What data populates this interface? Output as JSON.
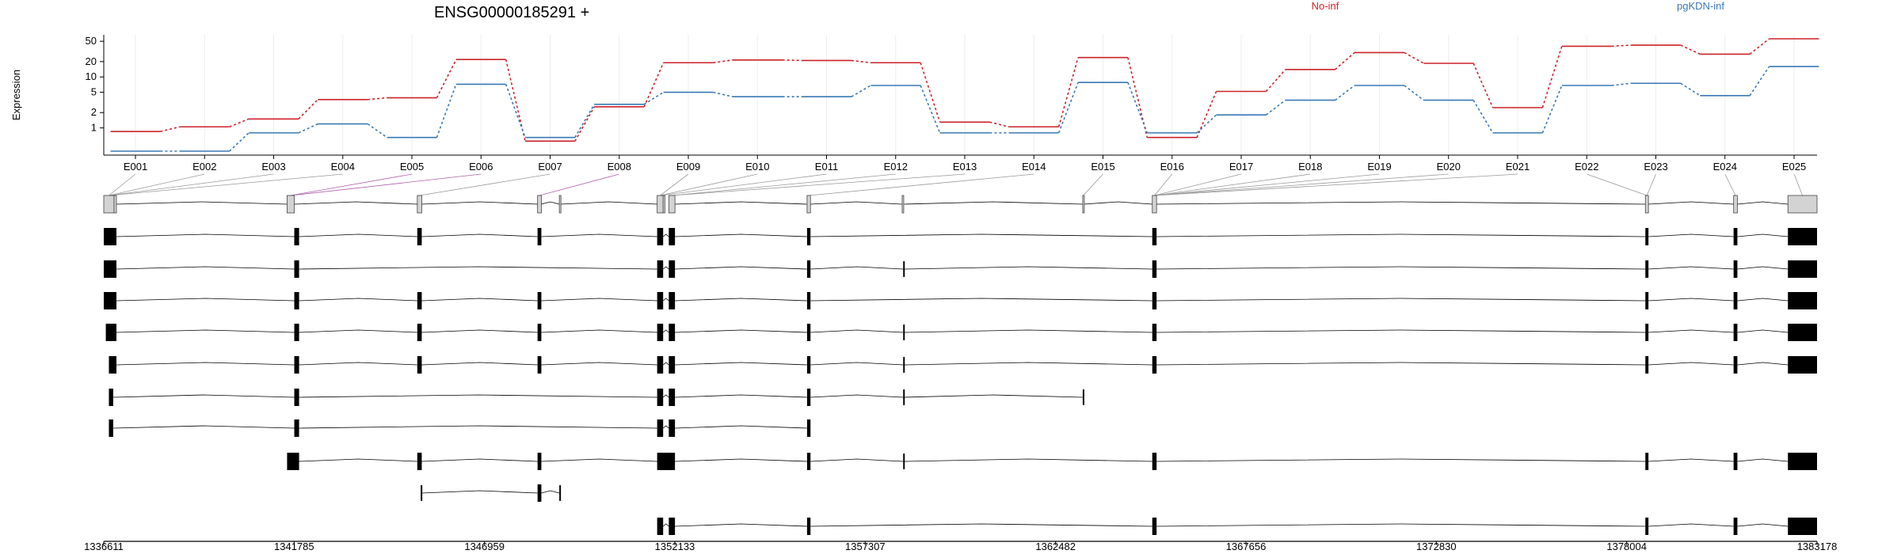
{
  "chart_data": {
    "type": "line",
    "title": "ENSG00000185291 +",
    "ylabel": "Expression",
    "y_scale": "log",
    "y_ticks": [
      1,
      2,
      5,
      10,
      20,
      50
    ],
    "y_tick_labels": [
      "1",
      "2",
      "5",
      "10",
      "20",
      "50"
    ],
    "grid": "vertical, light",
    "legend": "top, horizontal",
    "categories": [
      "E001",
      "E002",
      "E003",
      "E004",
      "E005",
      "E006",
      "E007",
      "E008",
      "E009",
      "E010",
      "E011",
      "E012",
      "E013",
      "E014",
      "E015",
      "E016",
      "E017",
      "E018",
      "E019",
      "E020",
      "E021",
      "E022",
      "E023",
      "E024",
      "E025"
    ],
    "series": [
      {
        "name": "No-inf",
        "color": "#cc2229",
        "values": [
          0.85,
          1.05,
          1.5,
          3.6,
          3.9,
          22,
          0.55,
          2.6,
          19,
          21.5,
          21,
          19,
          1.3,
          1.05,
          24,
          0.65,
          5.2,
          14,
          30,
          18.5,
          2.5,
          40,
          42,
          28,
          56
        ]
      },
      {
        "name": "pgKDN-inf",
        "color": "#3a78b5",
        "values": [
          0.35,
          0.35,
          0.8,
          1.2,
          0.65,
          7.2,
          0.65,
          2.9,
          5,
          4.1,
          4.1,
          6.8,
          0.8,
          0.8,
          7.8,
          0.8,
          1.8,
          3.5,
          6.8,
          3.5,
          0.8,
          6.8,
          7.5,
          4.3,
          16
        ]
      }
    ],
    "gene_model": {
      "x_axis_ticks": [
        "1336611",
        "1341785",
        "1346959",
        "1352133",
        "1357307",
        "1362482",
        "1367656",
        "1372830",
        "1378004",
        "1383178"
      ],
      "genome_range": [
        1336611,
        1383178
      ]
    }
  },
  "colors": {
    "no_inf": "#cc2229",
    "pgkdn_inf": "#3a78b5",
    "exon_fill": "#000000",
    "collapsed_exon_fill": "#d3d3d3"
  }
}
